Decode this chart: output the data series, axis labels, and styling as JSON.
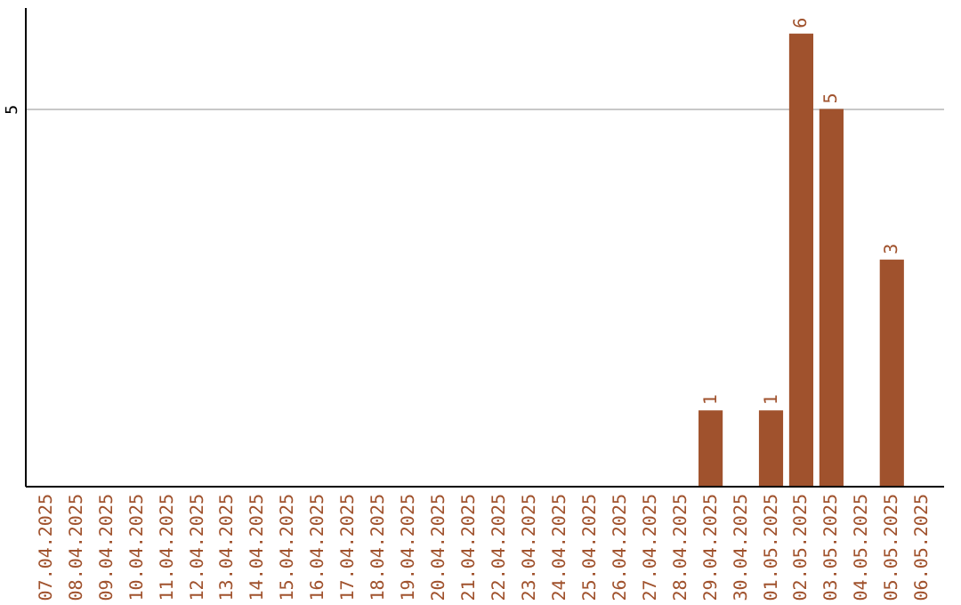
{
  "chart_data": {
    "type": "bar",
    "categories": [
      "07.04.2025",
      "08.04.2025",
      "09.04.2025",
      "10.04.2025",
      "11.04.2025",
      "12.04.2025",
      "13.04.2025",
      "14.04.2025",
      "15.04.2025",
      "16.04.2025",
      "17.04.2025",
      "18.04.2025",
      "19.04.2025",
      "20.04.2025",
      "21.04.2025",
      "22.04.2025",
      "23.04.2025",
      "24.04.2025",
      "25.04.2025",
      "26.04.2025",
      "27.04.2025",
      "28.04.2025",
      "29.04.2025",
      "30.04.2025",
      "01.05.2025",
      "02.05.2025",
      "03.05.2025",
      "04.05.2025",
      "05.05.2025",
      "06.05.2025"
    ],
    "values": [
      null,
      null,
      null,
      null,
      null,
      null,
      null,
      null,
      null,
      null,
      null,
      null,
      null,
      null,
      null,
      null,
      null,
      null,
      null,
      null,
      null,
      null,
      1,
      null,
      1,
      6,
      5,
      null,
      3,
      null
    ],
    "color": "#a0522d",
    "ylim": [
      0,
      6.35
    ],
    "yticks": [
      5
    ],
    "grid": "y",
    "data_labels": true
  }
}
